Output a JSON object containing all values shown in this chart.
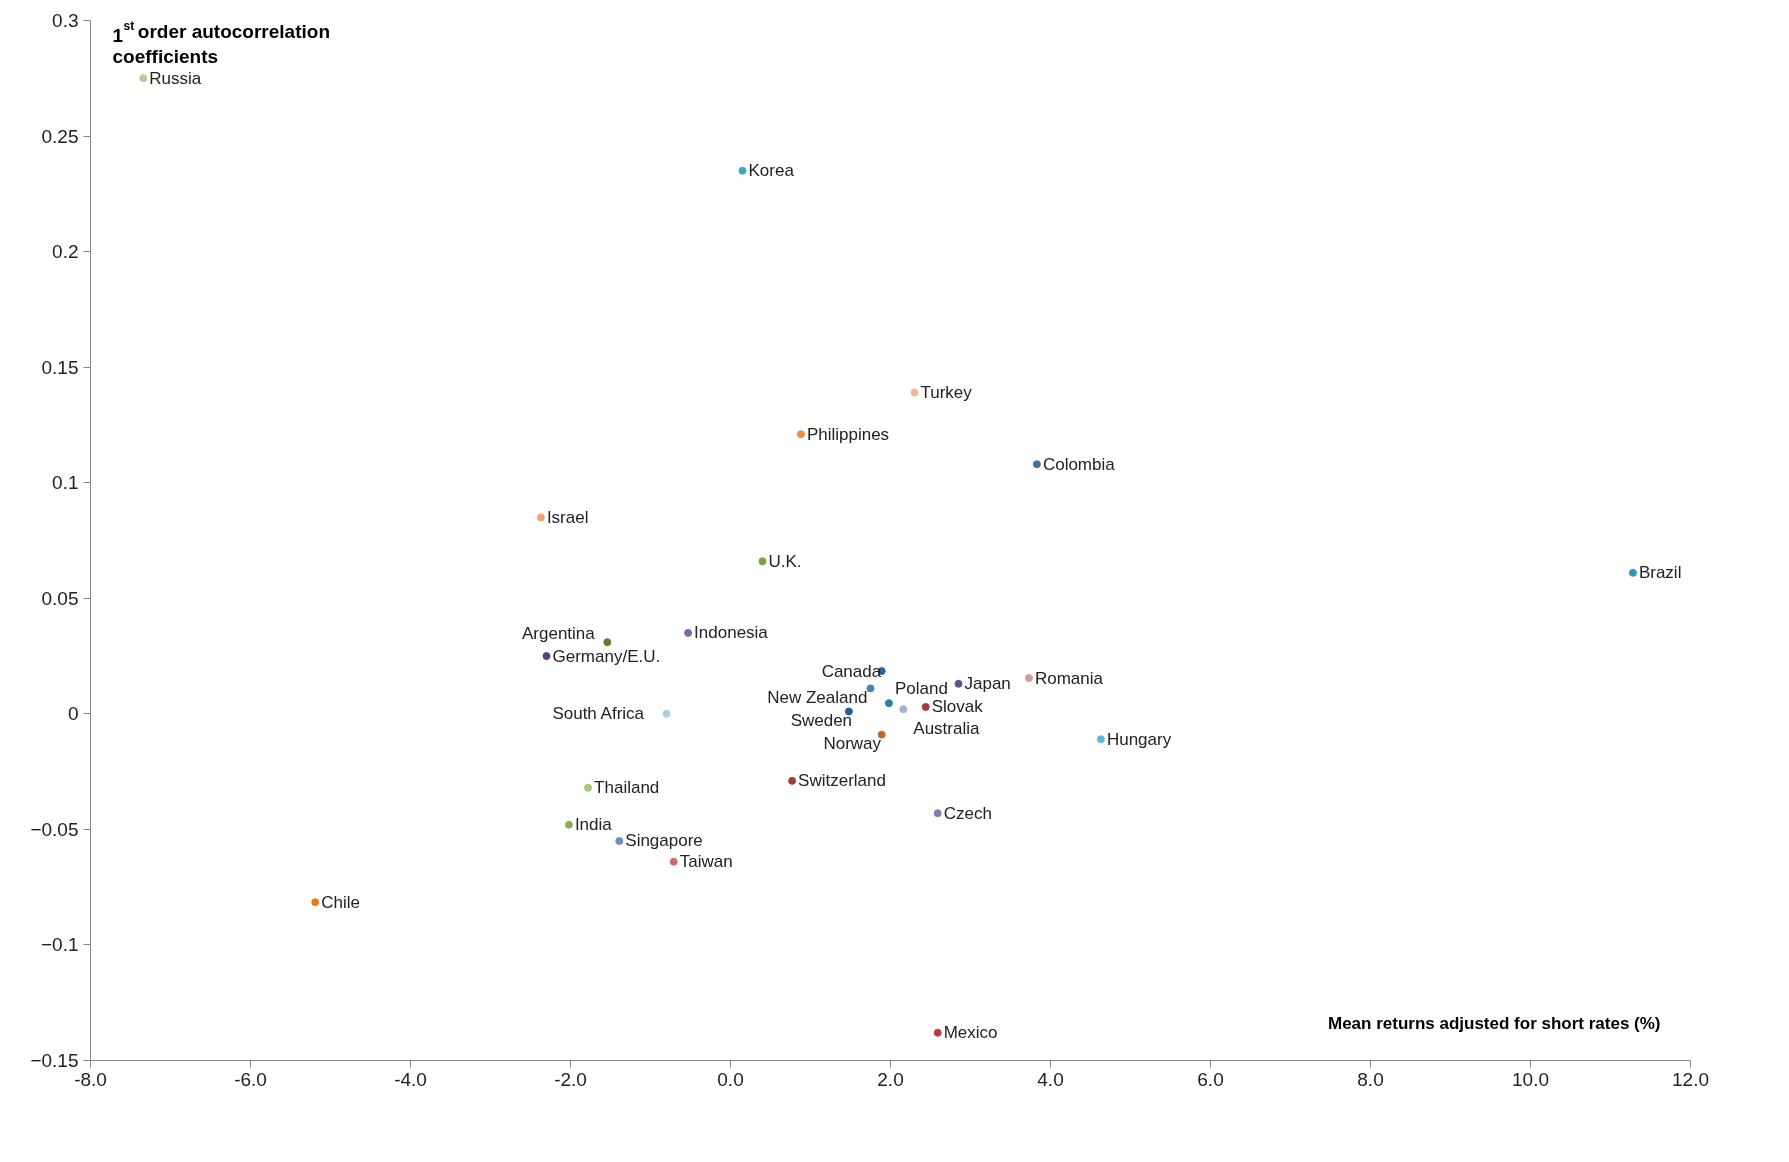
{
  "chart_data": {
    "type": "scatter",
    "xlabel": "Mean returns adjusted for short rates (%)",
    "ylabel": "1$^{st}$ order autocorrelation coefficients",
    "xlim": [
      -8,
      12
    ],
    "xticks": [
      {
        "value": -8,
        "label": "-8.0"
      },
      {
        "value": -6,
        "label": "-6.0"
      },
      {
        "value": -4,
        "label": "-4.0"
      },
      {
        "value": -2,
        "label": "-2.0"
      },
      {
        "value": 0,
        "label": "0.0"
      },
      {
        "value": 2,
        "label": "2.0"
      },
      {
        "value": 4,
        "label": "4.0"
      },
      {
        "value": 6,
        "label": "6.0"
      },
      {
        "value": 8,
        "label": "8.0"
      },
      {
        "value": 10,
        "label": "10.0"
      },
      {
        "value": 12,
        "label": "12.0"
      }
    ],
    "ylim": [
      -0.15,
      0.3
    ],
    "yticks": [
      -0.15,
      -0.1,
      -0.05,
      0,
      0.05,
      0.1,
      0.15,
      0.2,
      0.25,
      0.3
    ],
    "grid": false,
    "legend": false,
    "marker": "circle",
    "series": [
      {
        "name": "Russia",
        "color": "#b3cf8f",
        "x": [
          -7.34
        ],
        "values": [
          0.275
        ]
      },
      {
        "name": "Korea",
        "color": "#3fa7c0",
        "x": [
          0.15
        ],
        "values": [
          0.235
        ]
      },
      {
        "name": "Turkey",
        "color": "#f9b38b",
        "x": [
          2.3
        ],
        "values": [
          0.139
        ]
      },
      {
        "name": "Philippines",
        "color": "#f28a3a",
        "x": [
          0.88
        ],
        "values": [
          0.121
        ]
      },
      {
        "name": "Colombia",
        "color": "#3d72a8",
        "x": [
          3.83
        ],
        "values": [
          0.108
        ]
      },
      {
        "name": "Israel",
        "color": "#f7a06a",
        "x": [
          -2.37
        ],
        "values": [
          0.085
        ]
      },
      {
        "name": "U.K.",
        "color": "#77a33c",
        "x": [
          0.4
        ],
        "values": [
          0.066
        ]
      },
      {
        "name": "Brazil",
        "color": "#2e9bb5",
        "x": [
          11.28
        ],
        "values": [
          0.061
        ]
      },
      {
        "name": "Indonesia",
        "color": "#8364a5",
        "x": [
          -0.53
        ],
        "values": [
          0.035
        ]
      },
      {
        "name": "Germany/E.U.",
        "color": "#5c3f7f",
        "x": [
          -2.3
        ],
        "values": [
          0.025
        ]
      },
      {
        "name": "Argentina",
        "color": "#5f7f2a",
        "x": [
          -1.54
        ],
        "values": [
          0.031
        ]
      },
      {
        "name": "Canada",
        "color": "#2f5f95",
        "x": [
          1.89
        ],
        "values": [
          0.0185
        ]
      },
      {
        "name": "New Zealand",
        "color": "#4f81bd",
        "x": [
          1.75
        ],
        "values": [
          0.011
        ]
      },
      {
        "name": "Japan",
        "color": "#6b4b8f",
        "x": [
          2.85
        ],
        "values": [
          0.013
        ]
      },
      {
        "name": "Romania",
        "color": "#d99a9a",
        "x": [
          3.73
        ],
        "values": [
          0.0155
        ]
      },
      {
        "name": "Sweden",
        "color": "#2b5d93",
        "x": [
          1.48
        ],
        "values": [
          0.001
        ]
      },
      {
        "name": "Poland",
        "color": "#27879c",
        "x": [
          1.98
        ],
        "values": [
          0.0046
        ]
      },
      {
        "name": "Australia",
        "color": "#9fb3d9",
        "x": [
          2.16
        ],
        "values": [
          0.002
        ]
      },
      {
        "name": "Slovak",
        "color": "#a33a3a",
        "x": [
          2.44
        ],
        "values": [
          0.003
        ]
      },
      {
        "name": "South Africa",
        "color": "#a7d0e0",
        "x": [
          -0.8
        ],
        "values": [
          0.0
        ]
      },
      {
        "name": "Norway",
        "color": "#c06a2a",
        "x": [
          1.89
        ],
        "values": [
          -0.009
        ]
      },
      {
        "name": "Hungary",
        "color": "#5fb8d3",
        "x": [
          4.63
        ],
        "values": [
          -0.011
        ]
      },
      {
        "name": "Switzerland",
        "color": "#a53b3b",
        "x": [
          0.77
        ],
        "values": [
          -0.029
        ]
      },
      {
        "name": "Thailand",
        "color": "#a6c47a",
        "x": [
          -1.78
        ],
        "values": [
          -0.032
        ]
      },
      {
        "name": "Czech",
        "color": "#8a78b0",
        "x": [
          2.59
        ],
        "values": [
          -0.043
        ]
      },
      {
        "name": "India",
        "color": "#8db050",
        "x": [
          -2.02
        ],
        "values": [
          -0.048
        ]
      },
      {
        "name": "Singapore",
        "color": "#6b8cc7",
        "x": [
          -1.39
        ],
        "values": [
          -0.055
        ]
      },
      {
        "name": "Taiwan",
        "color": "#cf6b6b",
        "x": [
          -0.71
        ],
        "values": [
          -0.064
        ]
      },
      {
        "name": "Chile",
        "color": "#e37b27",
        "x": [
          -5.19
        ],
        "values": [
          -0.0815
        ]
      },
      {
        "name": "Mexico",
        "color": "#c0393b",
        "x": [
          2.59
        ],
        "values": [
          -0.138
        ]
      }
    ]
  }
}
